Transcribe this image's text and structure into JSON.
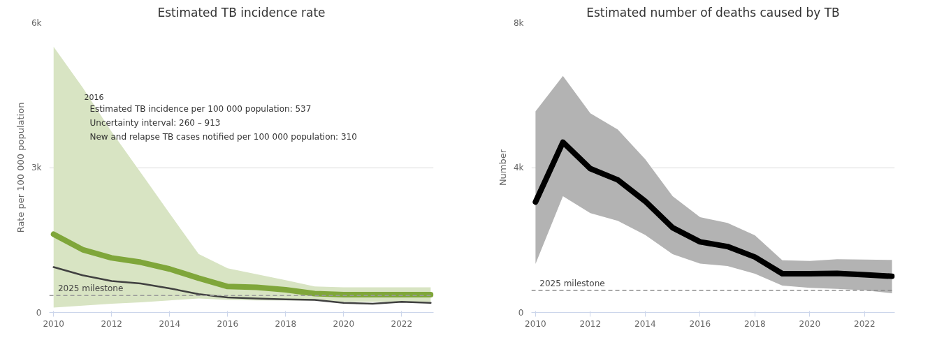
{
  "chart_data": [
    {
      "type": "line",
      "title": "Estimated TB incidence rate",
      "ylabel": "Rate per 100 000 population",
      "x": [
        2010,
        2011,
        2012,
        2013,
        2014,
        2015,
        2016,
        2017,
        2018,
        2019,
        2020,
        2021,
        2022,
        2023
      ],
      "xlim": [
        2009.85,
        2023.1
      ],
      "xticks": [
        2010,
        2012,
        2014,
        2016,
        2018,
        2020,
        2022
      ],
      "ylim": [
        0,
        6000
      ],
      "yticks": [
        0,
        {
          "value": 3000,
          "label": "3k"
        },
        {
          "value": 6000,
          "label": "6k"
        }
      ],
      "grid": "y",
      "line_style": "solid",
      "marker": "none",
      "series": [
        {
          "color": "#7fa63a",
          "values": [
            1620,
            1300,
            1130,
            1040,
            900,
            710,
            537,
            520,
            470,
            390,
            370,
            370,
            370,
            370
          ],
          "lower": [
            100,
            140,
            180,
            210,
            250,
            290,
            260,
            250,
            250,
            250,
            220,
            220,
            220,
            220
          ],
          "upper": [
            5500,
            4660,
            3740,
            2900,
            2050,
            1210,
            913,
            790,
            670,
            540,
            520,
            520,
            520,
            520
          ]
        },
        {
          "color": "#404040",
          "values": [
            940,
            770,
            650,
            600,
            500,
            380,
            310,
            290,
            270,
            260,
            200,
            180,
            220,
            200
          ]
        }
      ],
      "ref_lines": [
        {
          "axis": "y",
          "value": 350,
          "label": "2025 milestone",
          "color": "#999999",
          "line_style": "dashed"
        }
      ],
      "annotations": [
        "2016",
        "Estimated TB incidence per 100 000 population: 537",
        "Uncertainty interval: 260 – 913",
        "New and relapse TB cases notified per 100 000 population: 310"
      ]
    },
    {
      "type": "line",
      "title": "Estimated number of deaths caused by TB",
      "ylabel": "Number",
      "x": [
        2010,
        2011,
        2012,
        2013,
        2014,
        2015,
        2016,
        2017,
        2018,
        2019,
        2020,
        2021,
        2022,
        2023
      ],
      "xlim": [
        2009.85,
        2023.1
      ],
      "xticks": [
        2010,
        2012,
        2014,
        2016,
        2018,
        2020,
        2022
      ],
      "ylim": [
        0,
        8000
      ],
      "yticks": [
        0,
        {
          "value": 4000,
          "label": "4k"
        },
        {
          "value": 8000,
          "label": "8k"
        }
      ],
      "grid": "y",
      "line_style": "solid",
      "marker": "none",
      "series": [
        {
          "color": "#000000",
          "values": [
            3050,
            4700,
            3970,
            3660,
            3070,
            2340,
            1950,
            1820,
            1530,
            1070,
            1070,
            1080,
            1040,
            1000
          ],
          "lower": [
            1340,
            3210,
            2740,
            2530,
            2140,
            1610,
            1350,
            1280,
            1070,
            740,
            680,
            650,
            610,
            530
          ],
          "upper": [
            5550,
            6530,
            5500,
            5050,
            4230,
            3210,
            2630,
            2470,
            2130,
            1440,
            1420,
            1470,
            1460,
            1450
          ]
        }
      ],
      "ref_lines": [
        {
          "axis": "y",
          "value": 610,
          "label": "2025 milestone",
          "color": "#888888",
          "line_style": "dashed"
        }
      ]
    }
  ]
}
